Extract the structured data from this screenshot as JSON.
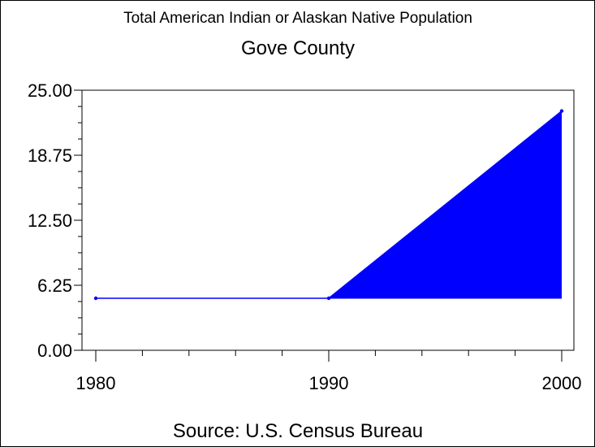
{
  "chart_data": {
    "type": "area",
    "title": "Total American Indian or Alaskan Native Population",
    "subtitle": "Gove County",
    "source": "Source: U.S. Census Bureau",
    "x": [
      1980,
      1990,
      2000
    ],
    "values": [
      5,
      5,
      23
    ],
    "baseline": 5,
    "xlim": [
      1980,
      2000
    ],
    "ylim": [
      0,
      25
    ],
    "yticks": [
      "0.00",
      "6.25",
      "12.50",
      "18.75",
      "25.00"
    ],
    "xticks": [
      "1980",
      "1990",
      "2000"
    ],
    "colors": {
      "series": "#0000ff",
      "axis": "#000000"
    },
    "grid": false
  }
}
